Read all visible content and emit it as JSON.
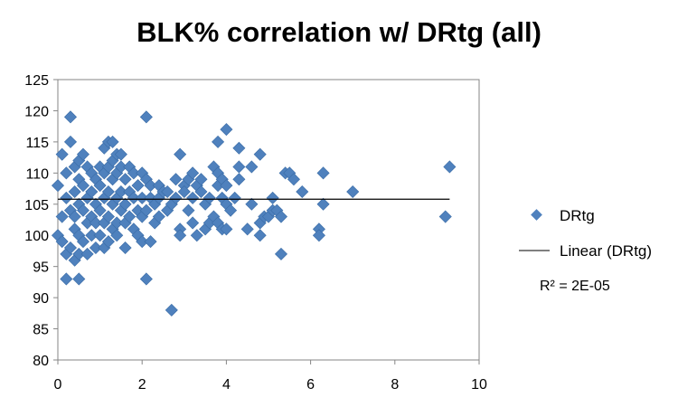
{
  "chart_data": {
    "type": "scatter",
    "title": "BLK% correlation w/ DRtg (all)",
    "xlabel": "",
    "ylabel": "",
    "xlim": [
      0,
      10
    ],
    "ylim": [
      80,
      125
    ],
    "x_ticks": [
      0,
      2,
      4,
      6,
      8,
      10
    ],
    "y_ticks": [
      80,
      85,
      90,
      95,
      100,
      105,
      110,
      115,
      120,
      125
    ],
    "grid": false,
    "legend_position": "right",
    "series": [
      {
        "name": "DRtg",
        "marker": "diamond",
        "color": "#4F81BD",
        "points": [
          [
            0.0,
            108
          ],
          [
            0.0,
            100
          ],
          [
            0.1,
            113
          ],
          [
            0.1,
            103
          ],
          [
            0.1,
            99
          ],
          [
            0.2,
            110
          ],
          [
            0.2,
            106
          ],
          [
            0.2,
            97
          ],
          [
            0.2,
            93
          ],
          [
            0.3,
            119
          ],
          [
            0.3,
            115
          ],
          [
            0.3,
            104
          ],
          [
            0.3,
            98
          ],
          [
            0.4,
            111
          ],
          [
            0.4,
            107
          ],
          [
            0.4,
            103
          ],
          [
            0.4,
            101
          ],
          [
            0.4,
            96
          ],
          [
            0.5,
            112
          ],
          [
            0.5,
            109
          ],
          [
            0.5,
            105
          ],
          [
            0.5,
            100
          ],
          [
            0.5,
            93
          ],
          [
            0.5,
            97
          ],
          [
            0.6,
            113
          ],
          [
            0.6,
            108
          ],
          [
            0.6,
            104
          ],
          [
            0.6,
            99
          ],
          [
            0.7,
            111
          ],
          [
            0.7,
            106
          ],
          [
            0.7,
            102
          ],
          [
            0.7,
            97
          ],
          [
            0.8,
            110
          ],
          [
            0.8,
            107
          ],
          [
            0.8,
            103
          ],
          [
            0.8,
            100
          ],
          [
            0.9,
            109
          ],
          [
            0.9,
            105
          ],
          [
            0.9,
            102
          ],
          [
            0.9,
            98
          ],
          [
            1.0,
            111
          ],
          [
            1.0,
            108
          ],
          [
            1.0,
            104
          ],
          [
            1.0,
            100
          ],
          [
            1.1,
            114
          ],
          [
            1.1,
            110
          ],
          [
            1.1,
            106
          ],
          [
            1.1,
            102
          ],
          [
            1.1,
            98
          ],
          [
            1.2,
            115
          ],
          [
            1.2,
            111
          ],
          [
            1.2,
            107
          ],
          [
            1.2,
            103
          ],
          [
            1.2,
            99
          ],
          [
            1.3,
            115
          ],
          [
            1.3,
            112
          ],
          [
            1.3,
            109
          ],
          [
            1.3,
            105
          ],
          [
            1.3,
            101
          ],
          [
            1.4,
            113
          ],
          [
            1.4,
            110
          ],
          [
            1.4,
            106
          ],
          [
            1.4,
            102
          ],
          [
            1.4,
            100
          ],
          [
            1.5,
            113
          ],
          [
            1.5,
            111
          ],
          [
            1.5,
            107
          ],
          [
            1.5,
            104
          ],
          [
            1.6,
            109
          ],
          [
            1.6,
            105
          ],
          [
            1.6,
            102
          ],
          [
            1.6,
            98
          ],
          [
            1.7,
            111
          ],
          [
            1.7,
            107
          ],
          [
            1.7,
            103
          ],
          [
            1.8,
            110
          ],
          [
            1.8,
            106
          ],
          [
            1.8,
            101
          ],
          [
            1.9,
            108
          ],
          [
            1.9,
            104
          ],
          [
            1.9,
            100
          ],
          [
            2.0,
            110
          ],
          [
            2.0,
            106
          ],
          [
            2.0,
            103
          ],
          [
            2.0,
            99
          ],
          [
            2.1,
            119
          ],
          [
            2.1,
            109
          ],
          [
            2.1,
            104
          ],
          [
            2.1,
            93
          ],
          [
            2.2,
            108
          ],
          [
            2.2,
            106
          ],
          [
            2.2,
            99
          ],
          [
            2.3,
            105
          ],
          [
            2.3,
            102
          ],
          [
            2.4,
            108
          ],
          [
            2.4,
            106
          ],
          [
            2.4,
            103
          ],
          [
            2.5,
            107
          ],
          [
            2.6,
            107
          ],
          [
            2.6,
            104
          ],
          [
            2.7,
            88
          ],
          [
            2.7,
            105
          ],
          [
            2.8,
            109
          ],
          [
            2.8,
            106
          ],
          [
            2.9,
            113
          ],
          [
            2.9,
            101
          ],
          [
            2.9,
            100
          ],
          [
            3.0,
            108
          ],
          [
            3.0,
            107
          ],
          [
            3.1,
            109
          ],
          [
            3.1,
            104
          ],
          [
            3.2,
            110
          ],
          [
            3.2,
            106
          ],
          [
            3.2,
            102
          ],
          [
            3.3,
            108
          ],
          [
            3.3,
            100
          ],
          [
            3.4,
            109
          ],
          [
            3.4,
            107
          ],
          [
            3.5,
            105
          ],
          [
            3.5,
            101
          ],
          [
            3.6,
            106
          ],
          [
            3.6,
            102
          ],
          [
            3.7,
            111
          ],
          [
            3.7,
            103
          ],
          [
            3.8,
            115
          ],
          [
            3.8,
            110
          ],
          [
            3.8,
            108
          ],
          [
            3.8,
            102
          ],
          [
            3.9,
            109
          ],
          [
            3.9,
            106
          ],
          [
            3.9,
            101
          ],
          [
            4.0,
            117
          ],
          [
            4.0,
            108
          ],
          [
            4.0,
            105
          ],
          [
            4.0,
            101
          ],
          [
            4.1,
            104
          ],
          [
            4.2,
            106
          ],
          [
            4.3,
            114
          ],
          [
            4.3,
            111
          ],
          [
            4.3,
            109
          ],
          [
            4.5,
            101
          ],
          [
            4.6,
            111
          ],
          [
            4.6,
            105
          ],
          [
            4.8,
            113
          ],
          [
            4.8,
            102
          ],
          [
            4.8,
            100
          ],
          [
            4.9,
            103
          ],
          [
            5.0,
            103
          ],
          [
            5.1,
            106
          ],
          [
            5.1,
            104
          ],
          [
            5.2,
            104
          ],
          [
            5.3,
            103
          ],
          [
            5.3,
            97
          ],
          [
            5.4,
            110
          ],
          [
            5.5,
            110
          ],
          [
            5.6,
            109
          ],
          [
            5.8,
            107
          ],
          [
            6.2,
            101
          ],
          [
            6.2,
            100
          ],
          [
            6.3,
            110
          ],
          [
            6.3,
            105
          ],
          [
            7.0,
            107
          ],
          [
            9.2,
            103
          ],
          [
            9.3,
            111
          ]
        ]
      }
    ],
    "trendline": {
      "name": "Linear (DRtg)",
      "type": "linear",
      "x_range": [
        0,
        9.3
      ],
      "y_values": [
        105.8,
        105.8
      ],
      "color": "#000000"
    },
    "annotations": [
      {
        "text": "R² = 2E-05"
      }
    ]
  }
}
